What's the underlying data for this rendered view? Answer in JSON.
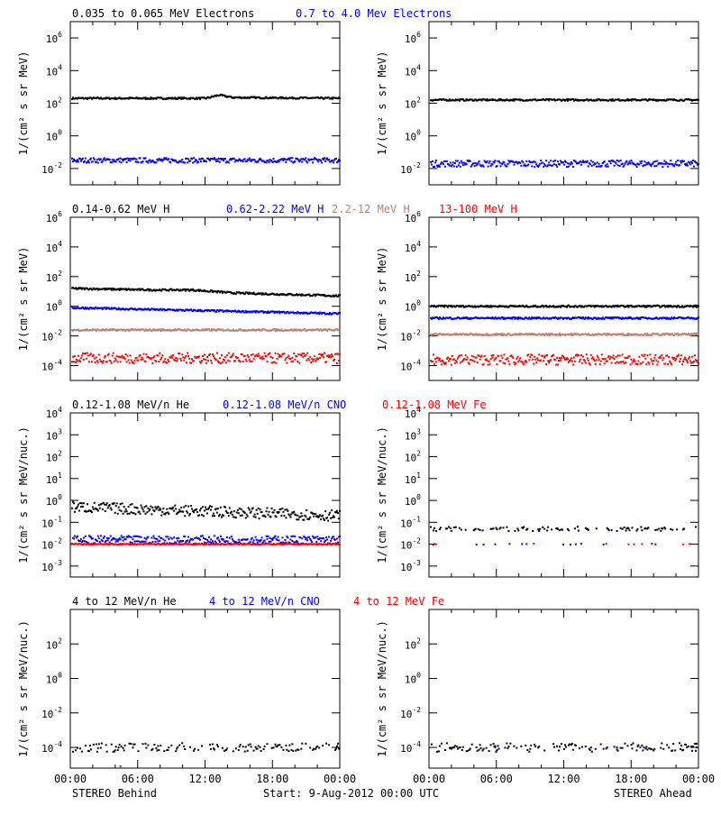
{
  "colors": {
    "black": "#000000",
    "blue": "#0000ff",
    "tan": "#c08070",
    "red": "#ff0000"
  },
  "x_ticks": [
    "00:00",
    "06:00",
    "12:00",
    "18:00",
    "00:00"
  ],
  "footer": {
    "left": "STEREO Behind",
    "center": "Start:  9-Aug-2012 00:00 UTC",
    "right": "STEREO Ahead"
  },
  "rows": [
    {
      "ylabel": "1/(cm² s sr MeV)",
      "log_range": [
        -3,
        7
      ],
      "y_ticks": [
        -2,
        0,
        2,
        4,
        6
      ],
      "legend": [
        {
          "text": "0.035 to 0.065 MeV Electrons",
          "color": "#000000"
        },
        {
          "text": "0.7 to 4.0 Mev Electrons",
          "color": "#0000ff"
        }
      ]
    },
    {
      "ylabel": "1/(cm² s sr MeV)",
      "log_range": [
        -5,
        6
      ],
      "y_ticks": [
        -4,
        -2,
        0,
        2,
        4,
        6
      ],
      "legend": [
        {
          "text": "0.14-0.62 MeV H",
          "color": "#000000"
        },
        {
          "text": "0.62-2.22 MeV H",
          "color": "#0000ff"
        },
        {
          "text": "2.2-12 MeV H",
          "color": "#c08070"
        },
        {
          "text": "13-100 MeV H",
          "color": "#ff0000"
        }
      ]
    },
    {
      "ylabel": "1/(cm² s sr MeV/nuc.)",
      "log_range": [
        -3.5,
        4
      ],
      "y_ticks": [
        -3,
        -2,
        -1,
        0,
        1,
        2,
        3,
        4
      ],
      "legend": [
        {
          "text": "0.12-1.08 MeV/n He",
          "color": "#000000"
        },
        {
          "text": "0.12-1.08 MeV/n CNO",
          "color": "#0000ff"
        },
        {
          "text": "0.12-1.08 MeV Fe",
          "color": "#ff0000"
        }
      ]
    },
    {
      "ylabel": "1/(cm² s sr MeV/nuc.)",
      "log_range": [
        -5.2,
        4
      ],
      "y_ticks": [
        -4,
        -2,
        0,
        2
      ],
      "legend": [
        {
          "text": "4 to 12 MeV/n He",
          "color": "#000000"
        },
        {
          "text": "4 to 12 MeV/n CNO",
          "color": "#0000ff"
        },
        {
          "text": "4 to 12 MeV Fe",
          "color": "#ff0000"
        }
      ]
    }
  ],
  "chart_data": [
    {
      "type": "scatter",
      "panel": "row1-left",
      "yscale": "log",
      "xlim": [
        "00:00",
        "24:00"
      ],
      "series": [
        {
          "name": "0.035 to 0.065 MeV Electrons",
          "color": "#000000",
          "level": 2.3,
          "noise": 0.05,
          "trend": [
            [
              0,
              2.3
            ],
            [
              0.5,
              2.3
            ],
            [
              0.55,
              2.5
            ],
            [
              0.6,
              2.35
            ],
            [
              1,
              2.3
            ]
          ]
        },
        {
          "name": "0.7 to 4.0 Mev Electrons",
          "color": "#0000ff",
          "level": -1.5,
          "noise": 0.15
        }
      ]
    },
    {
      "type": "scatter",
      "panel": "row1-right",
      "yscale": "log",
      "xlim": [
        "00:00",
        "24:00"
      ],
      "series": [
        {
          "name": "0.035 to 0.065 MeV Electrons",
          "color": "#000000",
          "level": 2.2,
          "noise": 0.05
        },
        {
          "name": "0.7 to 4.0 Mev Electrons",
          "color": "#0000ff",
          "level": -1.7,
          "noise": 0.2
        }
      ]
    },
    {
      "type": "scatter",
      "panel": "row2-left",
      "yscale": "log",
      "xlim": [
        "00:00",
        "24:00"
      ],
      "series": [
        {
          "name": "0.14-0.62 MeV H",
          "color": "#000000",
          "level": 1.2,
          "noise": 0.06,
          "trend": [
            [
              0,
              1.2
            ],
            [
              0.3,
              1.1
            ],
            [
              0.45,
              1.1
            ],
            [
              0.6,
              0.9
            ],
            [
              1,
              0.7
            ]
          ]
        },
        {
          "name": "0.62-2.22 MeV H",
          "color": "#0000ff",
          "level": -0.1,
          "noise": 0.06,
          "trend": [
            [
              0,
              -0.1
            ],
            [
              1,
              -0.5
            ]
          ]
        },
        {
          "name": "2.2-12 MeV H",
          "color": "#c08070",
          "level": -1.6,
          "noise": 0.06
        },
        {
          "name": "13-100 MeV H",
          "color": "#ff0000",
          "level": -3.5,
          "noise": 0.35
        }
      ]
    },
    {
      "type": "scatter",
      "panel": "row2-right",
      "yscale": "log",
      "xlim": [
        "00:00",
        "24:00"
      ],
      "series": [
        {
          "name": "0.14-0.62 MeV H",
          "color": "#000000",
          "level": 0.0,
          "noise": 0.06
        },
        {
          "name": "0.62-2.22 MeV H",
          "color": "#0000ff",
          "level": -0.8,
          "noise": 0.06
        },
        {
          "name": "2.2-12 MeV H",
          "color": "#c08070",
          "level": -1.9,
          "noise": 0.06
        },
        {
          "name": "13-100 MeV H",
          "color": "#ff0000",
          "level": -3.6,
          "noise": 0.35
        }
      ]
    },
    {
      "type": "scatter",
      "panel": "row3-left",
      "yscale": "log",
      "xlim": [
        "00:00",
        "24:00"
      ],
      "series": [
        {
          "name": "0.12-1.08 MeV/n He",
          "color": "#000000",
          "level": -0.5,
          "noise": 0.25,
          "trend": [
            [
              0,
              -0.3
            ],
            [
              0.5,
              -0.5
            ],
            [
              1,
              -0.7
            ]
          ]
        },
        {
          "name": "0.12-1.08 MeV/n CNO",
          "color": "#0000ff",
          "level": -1.8,
          "noise": 0.18
        },
        {
          "name": "0.12-1.08 MeV Fe",
          "color": "#ff0000",
          "level": -2.0,
          "noise": 0.02
        }
      ]
    },
    {
      "type": "scatter",
      "panel": "row3-right",
      "yscale": "log",
      "xlim": [
        "00:00",
        "24:00"
      ],
      "series": [
        {
          "name": "0.12-1.08 MeV/n He",
          "color": "#000000",
          "level": -1.3,
          "noise": 0.1,
          "sparse": 0.35
        },
        {
          "name": "0.12-1.08 MeV/n CNO",
          "color": "#0000ff",
          "level": -2.0,
          "noise": 0.02,
          "sparse": 0.06
        },
        {
          "name": "0.12-1.08 MeV Fe",
          "color": "#ff0000",
          "level": -2.0,
          "noise": 0.02,
          "sparse": 0.06
        }
      ]
    },
    {
      "type": "scatter",
      "panel": "row4-left",
      "yscale": "log",
      "xlim": [
        "00:00",
        "24:00"
      ],
      "series": [
        {
          "name": "4 to 12 MeV/n He",
          "color": "#000000",
          "level": -4.0,
          "noise": 0.25,
          "sparse": 0.45
        },
        {
          "name": "4 to 12 MeV Fe",
          "color": "#ff0000",
          "level": -5.1,
          "noise": 0.0,
          "sparse": 0.004
        }
      ]
    },
    {
      "type": "scatter",
      "panel": "row4-right",
      "yscale": "log",
      "xlim": [
        "00:00",
        "24:00"
      ],
      "series": [
        {
          "name": "4 to 12 MeV/n He",
          "color": "#000000",
          "level": -4.0,
          "noise": 0.25,
          "sparse": 0.45
        },
        {
          "name": "4 to 12 MeV/n CNO",
          "color": "#0000ff",
          "level": -4.0,
          "noise": 0.0,
          "sparse": 0.03
        }
      ]
    }
  ]
}
